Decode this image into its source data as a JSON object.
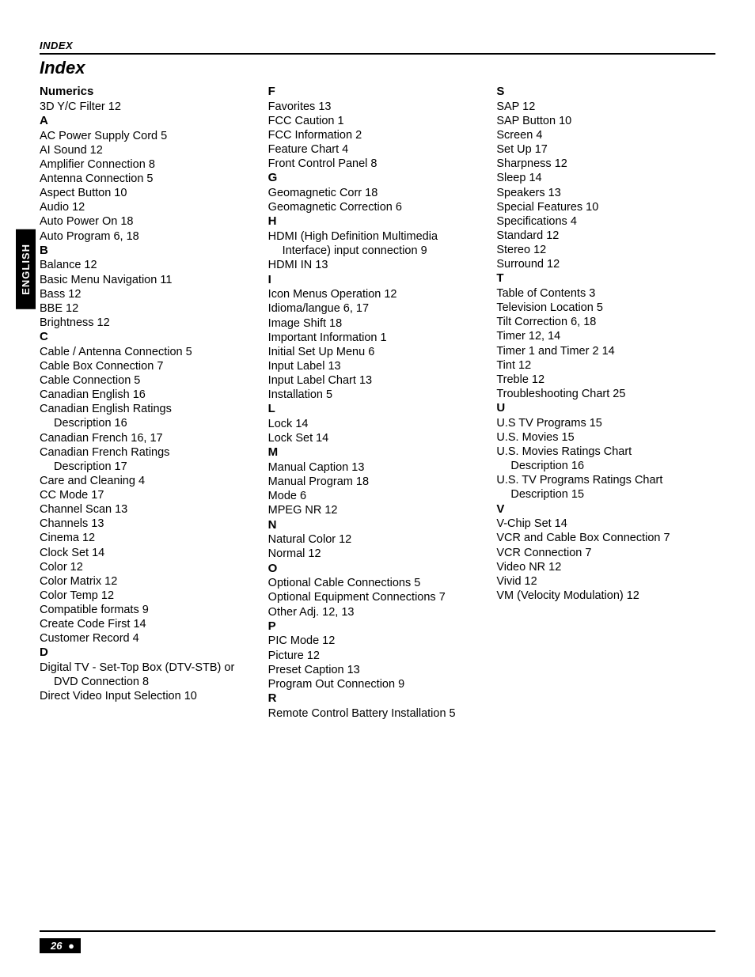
{
  "header": {
    "eyebrow": "INDEX",
    "title": "Index"
  },
  "sideTab": "ENGLISH",
  "footer": {
    "pageNumber": "26",
    "bullet": "●"
  },
  "columns": [
    {
      "items": [
        {
          "type": "head",
          "text": "Numerics"
        },
        {
          "type": "entry",
          "text": "3D Y/C Filter 12"
        },
        {
          "type": "head",
          "text": "A"
        },
        {
          "type": "entry",
          "text": "AC Power Supply Cord 5"
        },
        {
          "type": "entry",
          "text": "AI Sound 12"
        },
        {
          "type": "entry",
          "text": "Amplifier Connection 8"
        },
        {
          "type": "entry",
          "text": "Antenna Connection 5"
        },
        {
          "type": "entry",
          "text": "Aspect Button 10"
        },
        {
          "type": "entry",
          "text": "Audio 12"
        },
        {
          "type": "entry",
          "text": "Auto Power On 18"
        },
        {
          "type": "entry",
          "text": "Auto Program 6, 18"
        },
        {
          "type": "head",
          "text": "B"
        },
        {
          "type": "entry",
          "text": "Balance 12"
        },
        {
          "type": "entry",
          "text": "Basic Menu Navigation 11"
        },
        {
          "type": "entry",
          "text": "Bass 12"
        },
        {
          "type": "entry",
          "text": "BBE 12"
        },
        {
          "type": "entry",
          "text": "Brightness 12"
        },
        {
          "type": "head",
          "text": "C"
        },
        {
          "type": "entry",
          "text": "Cable / Antenna Connection 5"
        },
        {
          "type": "entry",
          "text": "Cable Box Connection 7"
        },
        {
          "type": "entry",
          "text": "Cable Connection 5"
        },
        {
          "type": "entry",
          "text": "Canadian English 16"
        },
        {
          "type": "entry",
          "text": "Canadian English Ratings"
        },
        {
          "type": "entry",
          "indent": true,
          "text": "Description 16"
        },
        {
          "type": "entry",
          "text": "Canadian French 16, 17"
        },
        {
          "type": "entry",
          "text": "Canadian French Ratings"
        },
        {
          "type": "entry",
          "indent": true,
          "text": "Description 17"
        },
        {
          "type": "entry",
          "text": "Care and Cleaning 4"
        },
        {
          "type": "entry",
          "text": "CC Mode 17"
        },
        {
          "type": "entry",
          "text": "Channel Scan 13"
        },
        {
          "type": "entry",
          "text": "Channels 13"
        },
        {
          "type": "entry",
          "text": "Cinema 12"
        },
        {
          "type": "entry",
          "text": "Clock Set 14"
        },
        {
          "type": "entry",
          "text": "Color 12"
        },
        {
          "type": "entry",
          "text": "Color Matrix 12"
        },
        {
          "type": "entry",
          "text": "Color Temp 12"
        },
        {
          "type": "entry",
          "text": "Compatible formats 9"
        },
        {
          "type": "entry",
          "text": "Create Code First 14"
        },
        {
          "type": "entry",
          "text": "Customer Record 4"
        },
        {
          "type": "head",
          "text": "D"
        },
        {
          "type": "entry",
          "text": "Digital TV - Set-Top Box (DTV-STB) or"
        },
        {
          "type": "entry",
          "indent": true,
          "text": "DVD Connection 8"
        },
        {
          "type": "entry",
          "text": "Direct Video Input Selection 10"
        }
      ]
    },
    {
      "items": [
        {
          "type": "head",
          "text": "F"
        },
        {
          "type": "entry",
          "text": "Favorites 13"
        },
        {
          "type": "entry",
          "text": "FCC Caution 1"
        },
        {
          "type": "entry",
          "text": "FCC Information 2"
        },
        {
          "type": "entry",
          "text": "Feature Chart 4"
        },
        {
          "type": "entry",
          "text": "Front Control Panel 8"
        },
        {
          "type": "head",
          "text": "G"
        },
        {
          "type": "entry",
          "text": "Geomagnetic Corr 18"
        },
        {
          "type": "entry",
          "text": "Geomagnetic Correction 6"
        },
        {
          "type": "head",
          "text": "H"
        },
        {
          "type": "entry",
          "text": "HDMI (High Definition Multimedia"
        },
        {
          "type": "entry",
          "indent": true,
          "text": "Interface) input connection 9"
        },
        {
          "type": "entry",
          "text": "HDMI IN 13"
        },
        {
          "type": "head",
          "text": "I"
        },
        {
          "type": "entry",
          "text": "Icon Menus Operation 12"
        },
        {
          "type": "entry",
          "text": "Idioma/langue 6, 17"
        },
        {
          "type": "entry",
          "text": "Image Shift 18"
        },
        {
          "type": "entry",
          "text": "Important Information 1"
        },
        {
          "type": "entry",
          "text": "Initial Set Up Menu 6"
        },
        {
          "type": "entry",
          "text": "Input Label 13"
        },
        {
          "type": "entry",
          "text": "Input Label Chart 13"
        },
        {
          "type": "entry",
          "text": "Installation 5"
        },
        {
          "type": "head",
          "text": "L"
        },
        {
          "type": "entry",
          "text": "Lock 14"
        },
        {
          "type": "entry",
          "text": "Lock Set 14"
        },
        {
          "type": "head",
          "text": "M"
        },
        {
          "type": "entry",
          "text": "Manual Caption 13"
        },
        {
          "type": "entry",
          "text": "Manual Program 18"
        },
        {
          "type": "entry",
          "text": "Mode 6"
        },
        {
          "type": "entry",
          "text": "MPEG NR 12"
        },
        {
          "type": "head",
          "text": "N"
        },
        {
          "type": "entry",
          "text": "Natural Color 12"
        },
        {
          "type": "entry",
          "text": "Normal 12"
        },
        {
          "type": "head",
          "text": "O"
        },
        {
          "type": "entry",
          "text": "Optional Cable Connections 5"
        },
        {
          "type": "entry",
          "text": "Optional Equipment Connections 7"
        },
        {
          "type": "entry",
          "text": "Other Adj. 12, 13"
        },
        {
          "type": "head",
          "text": "P"
        },
        {
          "type": "entry",
          "text": "PIC Mode 12"
        },
        {
          "type": "entry",
          "text": "Picture 12"
        },
        {
          "type": "entry",
          "text": "Preset Caption 13"
        },
        {
          "type": "entry",
          "text": "Program Out Connection 9"
        },
        {
          "type": "head",
          "text": "R"
        },
        {
          "type": "entry",
          "text": "Remote Control Battery Installation 5"
        }
      ]
    },
    {
      "items": [
        {
          "type": "head",
          "text": "S"
        },
        {
          "type": "entry",
          "text": "SAP 12"
        },
        {
          "type": "entry",
          "text": "SAP Button 10"
        },
        {
          "type": "entry",
          "text": "Screen 4"
        },
        {
          "type": "entry",
          "text": "Set Up 17"
        },
        {
          "type": "entry",
          "text": "Sharpness 12"
        },
        {
          "type": "entry",
          "text": "Sleep 14"
        },
        {
          "type": "entry",
          "text": "Speakers 13"
        },
        {
          "type": "entry",
          "text": "Special Features 10"
        },
        {
          "type": "entry",
          "text": "Specifications 4"
        },
        {
          "type": "entry",
          "text": "Standard 12"
        },
        {
          "type": "entry",
          "text": "Stereo 12"
        },
        {
          "type": "entry",
          "text": "Surround 12"
        },
        {
          "type": "head",
          "text": "T"
        },
        {
          "type": "entry",
          "text": "Table of Contents 3"
        },
        {
          "type": "entry",
          "text": "Television Location 5"
        },
        {
          "type": "entry",
          "text": "Tilt Correction 6, 18"
        },
        {
          "type": "entry",
          "text": "Timer 12, 14"
        },
        {
          "type": "entry",
          "text": "Timer 1 and Timer 2 14"
        },
        {
          "type": "entry",
          "text": "Tint 12"
        },
        {
          "type": "entry",
          "text": "Treble 12"
        },
        {
          "type": "entry",
          "text": "Troubleshooting Chart 25"
        },
        {
          "type": "head",
          "text": "U"
        },
        {
          "type": "entry",
          "text": "U.S TV Programs 15"
        },
        {
          "type": "entry",
          "text": "U.S. Movies 15"
        },
        {
          "type": "entry",
          "text": "U.S. Movies Ratings Chart"
        },
        {
          "type": "entry",
          "indent": true,
          "text": "Description 16"
        },
        {
          "type": "entry",
          "text": "U.S. TV Programs Ratings Chart"
        },
        {
          "type": "entry",
          "indent": true,
          "text": "Description 15"
        },
        {
          "type": "head",
          "text": "V"
        },
        {
          "type": "entry",
          "text": "V-Chip Set 14"
        },
        {
          "type": "entry",
          "text": "VCR and Cable Box Connection 7"
        },
        {
          "type": "entry",
          "text": "VCR Connection 7"
        },
        {
          "type": "entry",
          "text": "Video NR 12"
        },
        {
          "type": "entry",
          "text": "Vivid 12"
        },
        {
          "type": "entry",
          "text": "VM (Velocity Modulation) 12"
        }
      ]
    }
  ]
}
